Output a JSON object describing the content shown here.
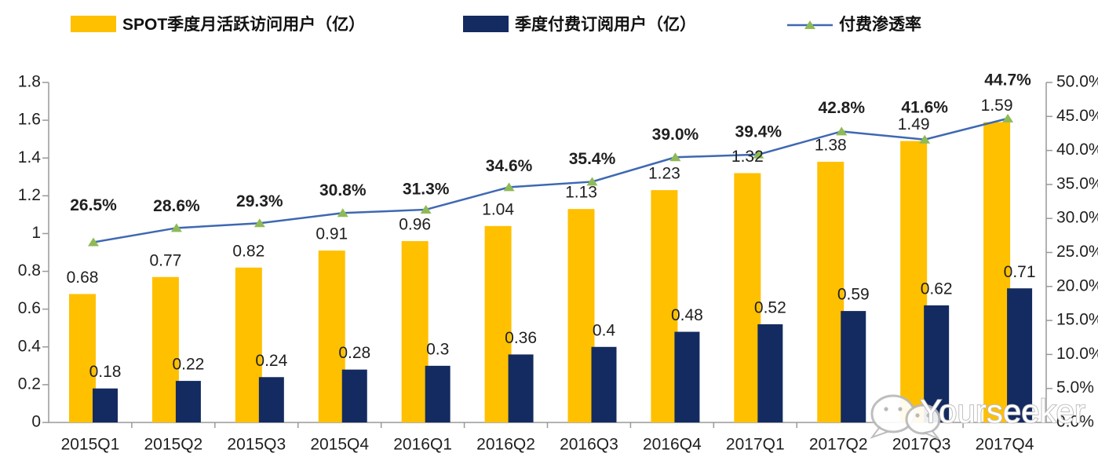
{
  "legend": {
    "items": [
      {
        "label": "SPOT季度月活跃访问用户（亿）",
        "type": "bar-swatch"
      },
      {
        "label": "季度付费订阅用户（亿）",
        "type": "bar-swatch"
      },
      {
        "label": "付费渗透率",
        "type": "line-marker"
      }
    ]
  },
  "chart_data": {
    "type": "bar+line",
    "categories": [
      "2015Q1",
      "2015Q2",
      "2015Q3",
      "2015Q4",
      "2016Q1",
      "2016Q2",
      "2016Q3",
      "2016Q4",
      "2017Q1",
      "2017Q2",
      "2017Q3",
      "2017Q4"
    ],
    "series": [
      {
        "name": "SPOT季度月活跃访问用户（亿）",
        "type": "bar",
        "axis": "left",
        "color": "#FFC000",
        "values": [
          0.68,
          0.77,
          0.82,
          0.91,
          0.96,
          1.04,
          1.13,
          1.23,
          1.32,
          1.38,
          1.49,
          1.59
        ],
        "value_labels": [
          "0.68",
          "0.77",
          "0.82",
          "0.91",
          "0.96",
          "1.04",
          "1.13",
          "1.23",
          "1.32",
          "1.38",
          "1.49",
          "1.59"
        ]
      },
      {
        "name": "季度付费订阅用户（亿）",
        "type": "bar",
        "axis": "left",
        "color": "#142B61",
        "values": [
          0.18,
          0.22,
          0.24,
          0.28,
          0.3,
          0.36,
          0.4,
          0.48,
          0.52,
          0.59,
          0.62,
          0.71
        ],
        "value_labels": [
          "0.18",
          "0.22",
          "0.24",
          "0.28",
          "0.3",
          "0.36",
          "0.4",
          "0.48",
          "0.52",
          "0.59",
          "0.62",
          "0.71"
        ]
      },
      {
        "name": "付费渗透率",
        "type": "line",
        "axis": "right",
        "color": "#3E68B2",
        "marker": "triangle",
        "marker_color": "#8FBA57",
        "values": [
          26.5,
          28.6,
          29.3,
          30.8,
          31.3,
          34.6,
          35.4,
          39.0,
          39.4,
          42.8,
          41.6,
          44.7
        ],
        "value_labels": [
          "26.5%",
          "28.6%",
          "29.3%",
          "30.8%",
          "31.3%",
          "34.6%",
          "35.4%",
          "39.0%",
          "39.4%",
          "42.8%",
          "41.6%",
          "44.7%"
        ]
      }
    ],
    "left_axis": {
      "min": 0,
      "max": 1.8,
      "step": 0.2,
      "tick_labels": [
        "0",
        "0.2",
        "0.4",
        "0.6",
        "0.8",
        "1",
        "1.2",
        "1.4",
        "1.6",
        "1.8"
      ]
    },
    "right_axis": {
      "min": 0,
      "max": 50,
      "step": 5,
      "tick_labels": [
        "0.0%",
        "5.0%",
        "10.0%",
        "15.0%",
        "20.0%",
        "25.0%",
        "30.0%",
        "35.0%",
        "40.0%",
        "45.0%",
        "50.0%"
      ]
    },
    "grid": false,
    "legend_position": "top"
  },
  "watermark": {
    "text": "Yourseeker",
    "icon": "wechat-icon"
  },
  "colors": {
    "axis": "#999999",
    "text": "#1F1F1F",
    "background": "#FFFFFF",
    "watermark": "#B9B9B9"
  }
}
